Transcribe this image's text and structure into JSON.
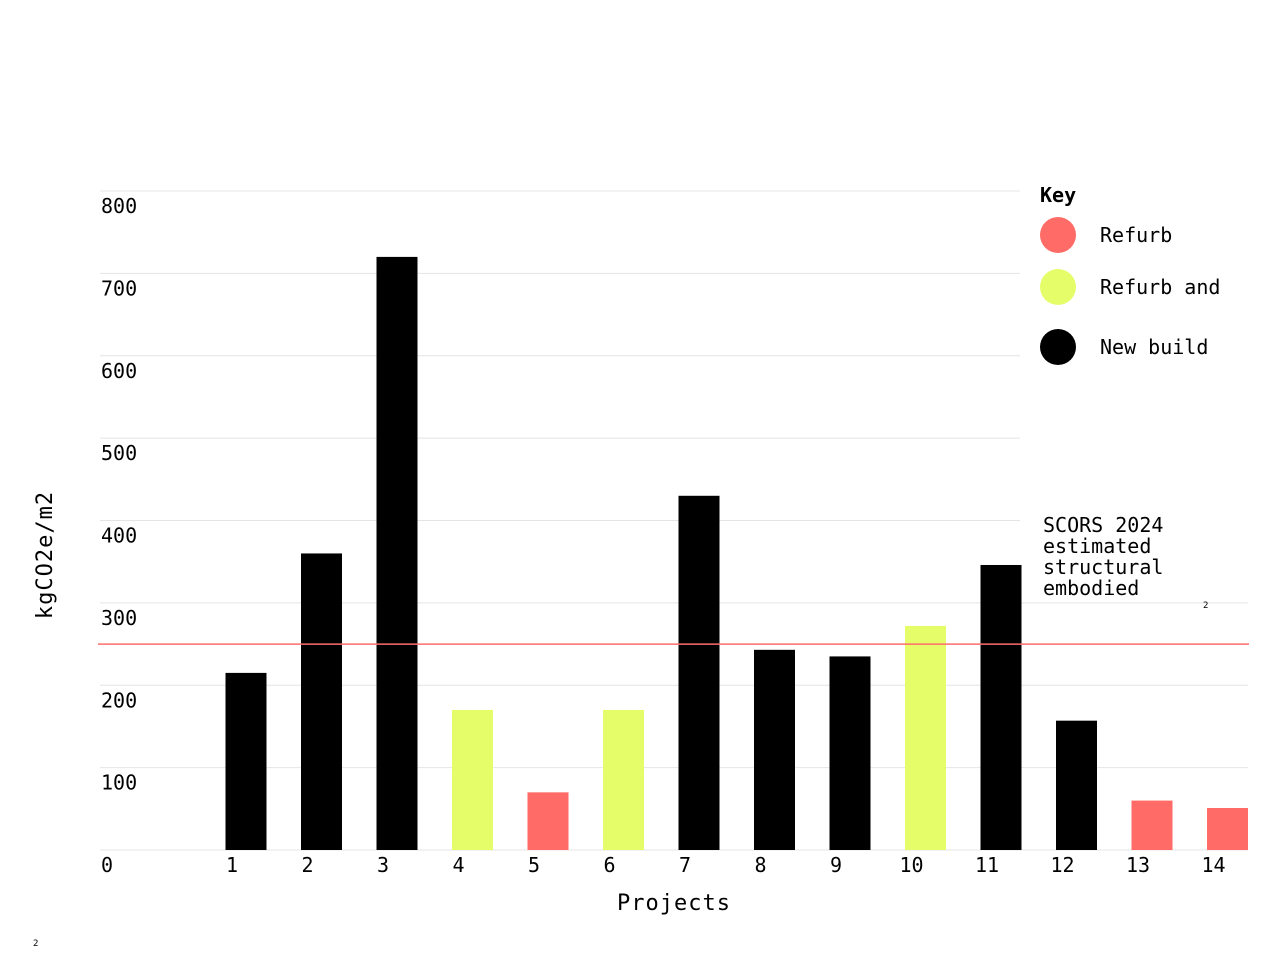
{
  "chart_data": {
    "type": "bar",
    "categories": [
      "1",
      "2",
      "3",
      "4",
      "5",
      "6",
      "7",
      "8",
      "9",
      "10",
      "11",
      "12",
      "13",
      "14"
    ],
    "values": [
      215,
      360,
      720,
      170,
      70,
      170,
      430,
      243,
      235,
      272,
      346,
      157,
      60,
      51
    ],
    "bar_types": [
      "new",
      "new",
      "new",
      "refurb_ext",
      "refurb",
      "refurb_ext",
      "new",
      "new",
      "new",
      "refurb_ext",
      "new",
      "new",
      "refurb",
      "refurb"
    ],
    "xlabel": "Projects",
    "ylabel": "kgCO2e/m2",
    "ylim": [
      0,
      800
    ],
    "yticks": [
      0,
      100,
      200,
      300,
      400,
      500,
      600,
      700,
      800
    ],
    "grid": true,
    "legend_placement": "top-right",
    "reference_line": {
      "value": 250,
      "label_lines": [
        "SCORS 2024",
        "estimated",
        "structural",
        "embodied"
      ],
      "color": "#ff6b6b"
    }
  },
  "legend": {
    "title": "Key",
    "items": [
      {
        "key": "refurb",
        "label": "Refurb",
        "color": "#ff6b66"
      },
      {
        "key": "refurb_ext",
        "label": "Refurb and",
        "color": "#e6fd6a"
      },
      {
        "key": "new",
        "label": "New build",
        "color": "#000000"
      }
    ]
  },
  "footnotes": {
    "annotation_mark": "2",
    "page_mark": "2"
  }
}
